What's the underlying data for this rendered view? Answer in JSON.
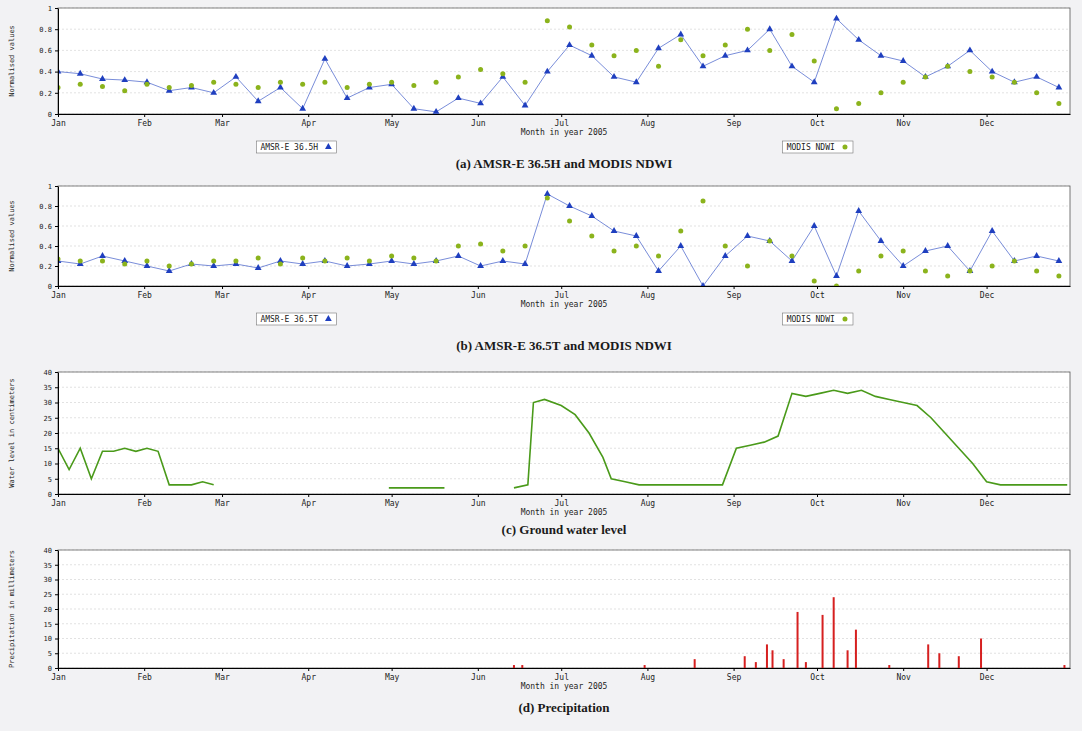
{
  "chart_data": [
    {
      "type": "line",
      "title": "(a) AMSR-E 36.5H and MODIS NDWI",
      "x_label": "Month in year 2005",
      "y_label": "Normalised values",
      "x": [
        1,
        9,
        17,
        25,
        33,
        41,
        49,
        57,
        65,
        73,
        81,
        89,
        97,
        105,
        113,
        121,
        129,
        137,
        145,
        153,
        161,
        169,
        177,
        185,
        193,
        201,
        209,
        217,
        225,
        233,
        241,
        249,
        257,
        265,
        273,
        281,
        289,
        297,
        305,
        313,
        321,
        329,
        337,
        345,
        353,
        361
      ],
      "series": [
        {
          "name": "AMSR-E 36.5H",
          "color": "#1f3fbf",
          "marker": "triangle",
          "line_style": "solid",
          "values": [
            0.4,
            0.38,
            0.33,
            0.32,
            0.3,
            0.22,
            0.25,
            0.2,
            0.35,
            0.12,
            0.25,
            0.05,
            0.52,
            0.15,
            0.25,
            0.28,
            0.05,
            0.02,
            0.15,
            0.1,
            0.35,
            0.08,
            0.4,
            0.65,
            0.55,
            0.35,
            0.3,
            0.62,
            0.75,
            0.45,
            0.55,
            0.6,
            0.8,
            0.45,
            0.3,
            0.9,
            0.7,
            0.55,
            0.5,
            0.35,
            0.45,
            0.6,
            0.4,
            0.3,
            0.35,
            0.25
          ]
        },
        {
          "name": "MODIS NDWI",
          "color": "#8bb31c",
          "marker": "circle",
          "line_style": "none",
          "values": [
            0.25,
            0.28,
            0.26,
            0.22,
            0.28,
            0.25,
            0.27,
            0.3,
            0.28,
            0.25,
            0.3,
            0.28,
            0.3,
            0.25,
            0.28,
            0.3,
            0.27,
            0.3,
            0.35,
            0.42,
            0.38,
            0.3,
            0.88,
            0.82,
            0.65,
            0.55,
            0.6,
            0.45,
            0.7,
            0.55,
            0.65,
            0.8,
            0.6,
            0.75,
            0.5,
            0.05,
            0.1,
            0.2,
            0.3,
            0.35,
            0.45,
            0.4,
            0.35,
            0.3,
            0.2,
            0.1
          ]
        }
      ],
      "xlim": [
        1,
        365
      ],
      "xticks": [
        {
          "value": 1,
          "label": "Jan"
        },
        {
          "value": 32,
          "label": "Feb"
        },
        {
          "value": 60,
          "label": "Mar"
        },
        {
          "value": 91,
          "label": "Apr"
        },
        {
          "value": 121,
          "label": "May"
        },
        {
          "value": 152,
          "label": "Jun"
        },
        {
          "value": 182,
          "label": "Jul"
        },
        {
          "value": 213,
          "label": "Aug"
        },
        {
          "value": 244,
          "label": "Sep"
        },
        {
          "value": 274,
          "label": "Oct"
        },
        {
          "value": 305,
          "label": "Nov"
        },
        {
          "value": 335,
          "label": "Dec"
        }
      ],
      "ylim": [
        0,
        1
      ],
      "yticks": [
        0,
        0.2,
        0.4,
        0.6,
        0.8,
        1
      ],
      "grid": true,
      "legend": "bottom"
    },
    {
      "type": "line",
      "title": "(b) AMSR-E 36.5T and MODIS NDWI",
      "x_label": "Month in year 2005",
      "y_label": "Normalised values",
      "x": [
        1,
        9,
        17,
        25,
        33,
        41,
        49,
        57,
        65,
        73,
        81,
        89,
        97,
        105,
        113,
        121,
        129,
        137,
        145,
        153,
        161,
        169,
        177,
        185,
        193,
        201,
        209,
        217,
        225,
        233,
        241,
        249,
        257,
        265,
        273,
        281,
        289,
        297,
        305,
        313,
        321,
        329,
        337,
        345,
        353,
        361
      ],
      "series": [
        {
          "name": "AMSR-E 36.5T",
          "color": "#1f3fbf",
          "marker": "triangle",
          "line_style": "solid",
          "values": [
            0.25,
            0.22,
            0.3,
            0.25,
            0.2,
            0.15,
            0.22,
            0.2,
            0.22,
            0.18,
            0.25,
            0.22,
            0.25,
            0.2,
            0.22,
            0.25,
            0.22,
            0.25,
            0.3,
            0.2,
            0.25,
            0.22,
            0.92,
            0.8,
            0.7,
            0.55,
            0.5,
            0.15,
            0.4,
            0.0,
            0.3,
            0.5,
            0.45,
            0.25,
            0.6,
            0.1,
            0.75,
            0.45,
            0.2,
            0.35,
            0.4,
            0.15,
            0.55,
            0.25,
            0.3,
            0.25
          ]
        },
        {
          "name": "MODIS NDWI",
          "color": "#8bb31c",
          "marker": "circle",
          "line_style": "none",
          "values": [
            0.27,
            0.25,
            0.25,
            0.22,
            0.25,
            0.2,
            0.22,
            0.25,
            0.25,
            0.28,
            0.22,
            0.28,
            0.25,
            0.28,
            0.25,
            0.3,
            0.28,
            0.25,
            0.4,
            0.42,
            0.35,
            0.4,
            0.88,
            0.65,
            0.5,
            0.35,
            0.4,
            0.3,
            0.55,
            0.85,
            0.4,
            0.2,
            0.45,
            0.3,
            0.05,
            0.0,
            0.15,
            0.3,
            0.35,
            0.15,
            0.1,
            0.15,
            0.2,
            0.25,
            0.15,
            0.1
          ]
        }
      ],
      "xlim": [
        1,
        365
      ],
      "xticks": [
        {
          "value": 1,
          "label": "Jan"
        },
        {
          "value": 32,
          "label": "Feb"
        },
        {
          "value": 60,
          "label": "Mar"
        },
        {
          "value": 91,
          "label": "Apr"
        },
        {
          "value": 121,
          "label": "May"
        },
        {
          "value": 152,
          "label": "Jun"
        },
        {
          "value": 182,
          "label": "Jul"
        },
        {
          "value": 213,
          "label": "Aug"
        },
        {
          "value": 244,
          "label": "Sep"
        },
        {
          "value": 274,
          "label": "Oct"
        },
        {
          "value": 305,
          "label": "Nov"
        },
        {
          "value": 335,
          "label": "Dec"
        }
      ],
      "ylim": [
        0,
        1
      ],
      "yticks": [
        0,
        0.2,
        0.4,
        0.6,
        0.8,
        1
      ],
      "grid": true,
      "legend": "bottom"
    },
    {
      "type": "line",
      "title": "(c) Ground water level",
      "x_label": "Month in year 2005",
      "y_label": "Water level in centimeters",
      "x": [
        1,
        5,
        9,
        13,
        17,
        21,
        25,
        29,
        33,
        37,
        41,
        45,
        49,
        53,
        57,
        61,
        120,
        125,
        130,
        135,
        140,
        145,
        165,
        170,
        172,
        176,
        182,
        187,
        192,
        197,
        200,
        205,
        210,
        215,
        220,
        225,
        230,
        235,
        240,
        245,
        250,
        255,
        260,
        265,
        270,
        275,
        280,
        285,
        290,
        295,
        300,
        305,
        310,
        315,
        320,
        325,
        330,
        335,
        340,
        345,
        350,
        355,
        360,
        364
      ],
      "series": [
        {
          "color": "#4a9a1a",
          "line_style": "solid",
          "values": [
            15,
            8,
            15,
            5,
            14,
            14,
            15,
            14,
            15,
            14,
            3,
            3,
            3,
            4,
            3,
            null,
            2,
            2,
            2,
            2,
            2,
            null,
            2,
            3,
            30,
            31,
            29,
            26,
            20,
            12,
            5,
            4,
            3,
            3,
            3,
            3,
            3,
            3,
            3,
            15,
            16,
            17,
            19,
            33,
            32,
            33,
            34,
            33,
            34,
            32,
            31,
            30,
            29,
            25,
            20,
            15,
            10,
            4,
            3,
            3,
            3,
            3,
            3,
            3
          ]
        }
      ],
      "xlim": [
        1,
        365
      ],
      "xticks": [
        {
          "value": 1,
          "label": "Jan"
        },
        {
          "value": 32,
          "label": "Feb"
        },
        {
          "value": 60,
          "label": "Mar"
        },
        {
          "value": 91,
          "label": "Apr"
        },
        {
          "value": 121,
          "label": "May"
        },
        {
          "value": 152,
          "label": "Jun"
        },
        {
          "value": 182,
          "label": "Jul"
        },
        {
          "value": 213,
          "label": "Aug"
        },
        {
          "value": 244,
          "label": "Sep"
        },
        {
          "value": 274,
          "label": "Oct"
        },
        {
          "value": 305,
          "label": "Nov"
        },
        {
          "value": 335,
          "label": "Dec"
        }
      ],
      "ylim": [
        0,
        40
      ],
      "yticks": [
        0,
        5,
        10,
        15,
        20,
        25,
        30,
        35,
        40
      ],
      "grid": true
    },
    {
      "type": "bar",
      "title": "(d) Precipitation",
      "x_label": "Month in year 2005",
      "y_label": "Precipitation in millimeters",
      "x": [
        165,
        168,
        212,
        230,
        248,
        252,
        256,
        258,
        262,
        267,
        270,
        276,
        280,
        285,
        288,
        300,
        314,
        318,
        325,
        333,
        363
      ],
      "series": [
        {
          "color": "#d62020",
          "values": [
            1,
            1,
            1,
            3,
            4,
            2,
            8,
            6,
            3,
            19,
            2,
            18,
            24,
            6,
            13,
            1,
            8,
            5,
            4,
            10,
            1
          ]
        }
      ],
      "xlim": [
        1,
        365
      ],
      "xticks": [
        {
          "value": 1,
          "label": "Jan"
        },
        {
          "value": 32,
          "label": "Feb"
        },
        {
          "value": 60,
          "label": "Mar"
        },
        {
          "value": 91,
          "label": "Apr"
        },
        {
          "value": 121,
          "label": "May"
        },
        {
          "value": 152,
          "label": "Jun"
        },
        {
          "value": 182,
          "label": "Jul"
        },
        {
          "value": 213,
          "label": "Aug"
        },
        {
          "value": 244,
          "label": "Sep"
        },
        {
          "value": 274,
          "label": "Oct"
        },
        {
          "value": 305,
          "label": "Nov"
        },
        {
          "value": 335,
          "label": "Dec"
        }
      ],
      "ylim": [
        0,
        40
      ],
      "yticks": [
        0,
        5,
        10,
        15,
        20,
        25,
        30,
        35,
        40
      ],
      "grid": true
    }
  ]
}
